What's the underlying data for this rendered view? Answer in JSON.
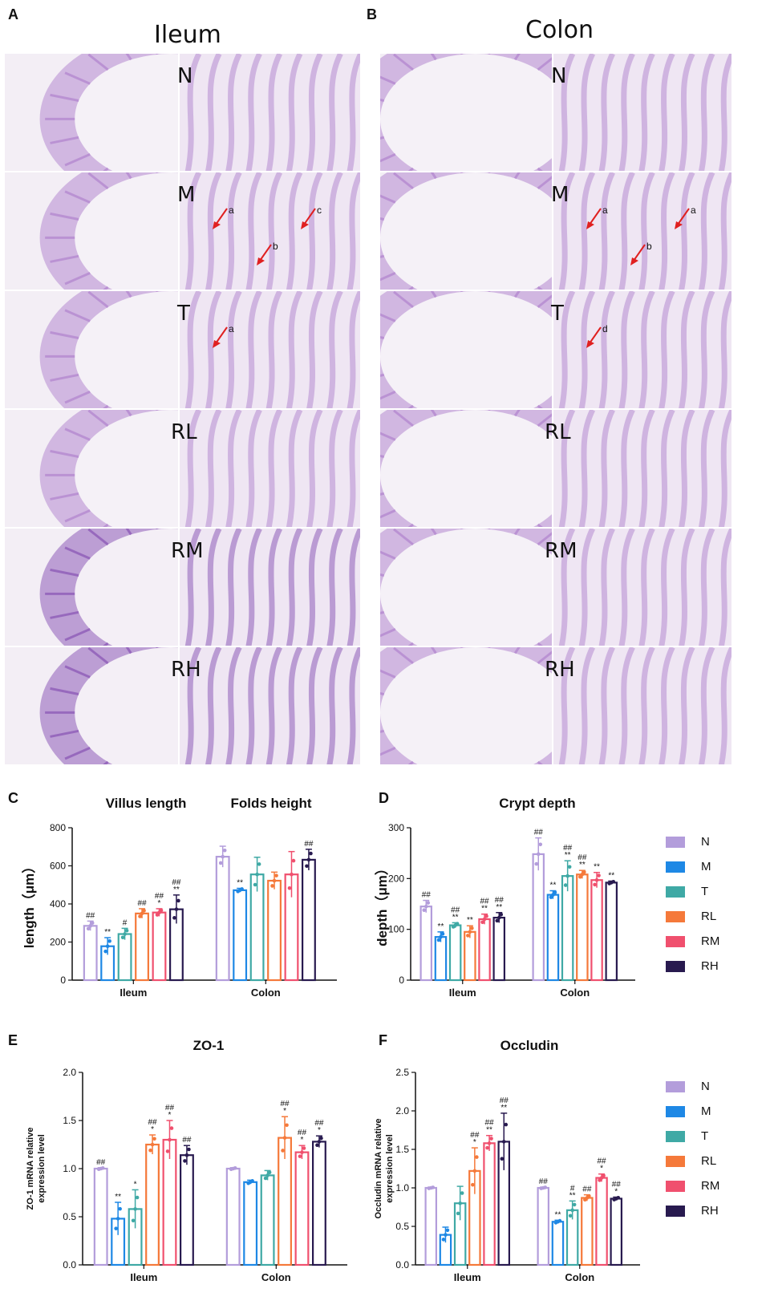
{
  "panels": {
    "A": {
      "letter": "A",
      "title": "Ileum",
      "groups": [
        "N",
        "M",
        "T",
        "RL",
        "RM",
        "RH"
      ],
      "annotations": {
        "M": [
          "a",
          "b",
          "c"
        ],
        "T": [
          "a"
        ]
      }
    },
    "B": {
      "letter": "B",
      "title": "Colon",
      "groups": [
        "N",
        "M",
        "T",
        "RL",
        "RM",
        "RH"
      ],
      "annotations": {
        "M": [
          "a",
          "b",
          "a"
        ],
        "T": [
          "d"
        ]
      }
    },
    "C": {
      "letter": "C"
    },
    "D": {
      "letter": "D"
    },
    "E": {
      "letter": "E"
    },
    "F": {
      "letter": "F"
    }
  },
  "legend_groups": [
    "N",
    "M",
    "T",
    "RL",
    "RM",
    "RH"
  ],
  "colors": {
    "N": "#b39ddb",
    "M": "#1e88e5",
    "T": "#3fa9a5",
    "RL": "#f5793a",
    "RM": "#f0506e",
    "RH": "#281a4f",
    "tissue_purple": "#b58ad0",
    "tissue_dark": "#8e5cb8",
    "arrow_red": "#e02020"
  },
  "chart_data": [
    {
      "id": "C",
      "type": "bar",
      "titles": [
        "Villus length",
        "Folds height"
      ],
      "ylabel": "length（μm）",
      "ylim": [
        0,
        800
      ],
      "yticks": [
        0,
        200,
        400,
        600,
        800
      ],
      "categories": [
        "Ileum",
        "Colon"
      ],
      "series": [
        {
          "name": "N",
          "values": [
            285,
            648
          ],
          "err": [
            25,
            55
          ],
          "sig": [
            "##",
            ""
          ]
        },
        {
          "name": "M",
          "values": [
            178,
            472
          ],
          "err": [
            45,
            10
          ],
          "sig": [
            "**",
            "**"
          ]
        },
        {
          "name": "T",
          "values": [
            242,
            555
          ],
          "err": [
            30,
            90
          ],
          "sig": [
            "#",
            ""
          ]
        },
        {
          "name": "RL",
          "values": [
            350,
            522
          ],
          "err": [
            25,
            45
          ],
          "sig": [
            "##",
            ""
          ]
        },
        {
          "name": "RM",
          "values": [
            355,
            555
          ],
          "err": [
            20,
            120
          ],
          "sig": [
            "##\n*",
            ""
          ]
        },
        {
          "name": "RH",
          "values": [
            372,
            632
          ],
          "err": [
            75,
            55
          ],
          "sig": [
            "##\n**",
            "##"
          ]
        }
      ]
    },
    {
      "id": "D",
      "type": "bar",
      "titles": [
        "Crypt depth"
      ],
      "ylabel": "depth（μm）",
      "ylim": [
        0,
        300
      ],
      "yticks": [
        0,
        100,
        200,
        300
      ],
      "categories": [
        "Ileum",
        "Colon"
      ],
      "series": [
        {
          "name": "N",
          "values": [
            145,
            248
          ],
          "err": [
            12,
            32
          ],
          "sig": [
            "##",
            "##"
          ]
        },
        {
          "name": "M",
          "values": [
            85,
            168
          ],
          "err": [
            10,
            8
          ],
          "sig": [
            "**",
            "**"
          ]
        },
        {
          "name": "T",
          "values": [
            108,
            205
          ],
          "err": [
            5,
            30
          ],
          "sig": [
            "##\n**",
            "##\n**"
          ]
        },
        {
          "name": "RL",
          "values": [
            95,
            208
          ],
          "err": [
            12,
            8
          ],
          "sig": [
            "**",
            "##\n**"
          ]
        },
        {
          "name": "RM",
          "values": [
            120,
            197
          ],
          "err": [
            10,
            15
          ],
          "sig": [
            "##\n**",
            "**"
          ]
        },
        {
          "name": "RH",
          "values": [
            123,
            192
          ],
          "err": [
            10,
            3
          ],
          "sig": [
            "##\n**",
            "**"
          ]
        }
      ]
    },
    {
      "id": "E",
      "type": "bar",
      "titles": [
        "ZO-1"
      ],
      "ylabel": "ZO-1 mRNA relative\nexpression level",
      "ylim": [
        0,
        2.0
      ],
      "yticks": [
        0.0,
        0.5,
        1.0,
        1.5,
        2.0
      ],
      "categories": [
        "Ileum",
        "Colon"
      ],
      "series": [
        {
          "name": "N",
          "values": [
            1.0,
            1.0
          ],
          "err": [
            0.01,
            0.01
          ],
          "sig": [
            "##",
            ""
          ]
        },
        {
          "name": "M",
          "values": [
            0.48,
            0.86
          ],
          "err": [
            0.17,
            0.02
          ],
          "sig": [
            "**",
            ""
          ]
        },
        {
          "name": "T",
          "values": [
            0.58,
            0.93
          ],
          "err": [
            0.2,
            0.05
          ],
          "sig": [
            "*",
            ""
          ]
        },
        {
          "name": "RL",
          "values": [
            1.25,
            1.32
          ],
          "err": [
            0.1,
            0.22
          ],
          "sig": [
            "##\n*",
            "##\n*"
          ]
        },
        {
          "name": "RM",
          "values": [
            1.3,
            1.17
          ],
          "err": [
            0.2,
            0.07
          ],
          "sig": [
            "##\n*",
            "##\n*"
          ]
        },
        {
          "name": "RH",
          "values": [
            1.14,
            1.28
          ],
          "err": [
            0.1,
            0.06
          ],
          "sig": [
            "##",
            "##\n*"
          ]
        }
      ]
    },
    {
      "id": "F",
      "type": "bar",
      "titles": [
        "Occludin"
      ],
      "ylabel": "Occludin mRNA relative\nexpression level",
      "ylim": [
        0,
        2.5
      ],
      "yticks": [
        0.0,
        0.5,
        1.0,
        1.5,
        2.0,
        2.5
      ],
      "categories": [
        "Ileum",
        "Colon"
      ],
      "series": [
        {
          "name": "N",
          "values": [
            1.0,
            1.0
          ],
          "err": [
            0.01,
            0.01
          ],
          "sig": [
            "",
            "##"
          ]
        },
        {
          "name": "M",
          "values": [
            0.39,
            0.56
          ],
          "err": [
            0.1,
            0.02
          ],
          "sig": [
            "",
            "**"
          ]
        },
        {
          "name": "T",
          "values": [
            0.8,
            0.71
          ],
          "err": [
            0.22,
            0.12
          ],
          "sig": [
            "",
            "#\n**"
          ]
        },
        {
          "name": "RL",
          "values": [
            1.22,
            0.87
          ],
          "err": [
            0.3,
            0.04
          ],
          "sig": [
            "##\n*",
            "##"
          ]
        },
        {
          "name": "RM",
          "values": [
            1.58,
            1.13
          ],
          "err": [
            0.1,
            0.05
          ],
          "sig": [
            "##\n**",
            "##\n*"
          ]
        },
        {
          "name": "RH",
          "values": [
            1.6,
            0.86
          ],
          "err": [
            0.37,
            0.02
          ],
          "sig": [
            "##\n**",
            "##\n*"
          ]
        }
      ]
    }
  ]
}
